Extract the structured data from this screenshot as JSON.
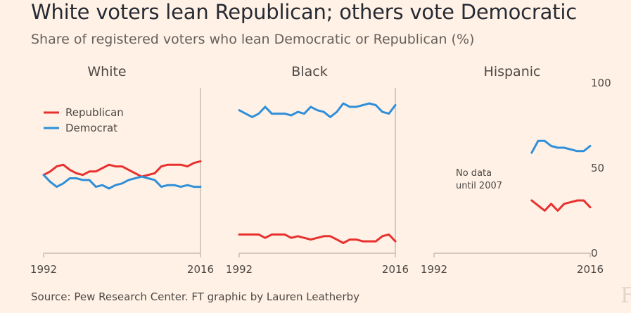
{
  "chart_data": {
    "type": "line",
    "title": "White voters lean Republican; others vote Democratic",
    "subtitle": "Share of registered voters who lean Democratic or Republican (%)",
    "source": "Source: Pew Research Center. FT graphic by Lauren Leatherby",
    "watermark": "FT",
    "ylim": [
      0,
      100
    ],
    "y_ticks": [
      "0",
      "50",
      "100"
    ],
    "xlim": [
      1992,
      2016
    ],
    "x_ticks": [
      "1992",
      "2016"
    ],
    "colors": {
      "republican": "#e8302f",
      "democrat": "#2f8fd8",
      "axis": "#c9bdb1"
    },
    "legend": [
      "Republican",
      "Democrat"
    ],
    "annotation": [
      "No data",
      "until 2007"
    ],
    "panels": [
      {
        "title": "White",
        "series": [
          {
            "name": "Republican",
            "x": [
              1992,
              1993,
              1994,
              1995,
              1996,
              1997,
              1998,
              1999,
              2000,
              2001,
              2002,
              2003,
              2004,
              2005,
              2006,
              2007,
              2008,
              2009,
              2010,
              2011,
              2012,
              2013,
              2014,
              2015,
              2016
            ],
            "values": [
              46,
              48,
              51,
              52,
              49,
              47,
              46,
              48,
              48,
              50,
              52,
              51,
              51,
              49,
              47,
              45,
              46,
              47,
              51,
              52,
              52,
              52,
              51,
              53,
              54
            ]
          },
          {
            "name": "Democrat",
            "x": [
              1992,
              1993,
              1994,
              1995,
              1996,
              1997,
              1998,
              1999,
              2000,
              2001,
              2002,
              2003,
              2004,
              2005,
              2006,
              2007,
              2008,
              2009,
              2010,
              2011,
              2012,
              2013,
              2014,
              2015,
              2016
            ],
            "values": [
              46,
              42,
              39,
              41,
              44,
              44,
              43,
              43,
              39,
              40,
              38,
              40,
              41,
              43,
              44,
              45,
              44,
              43,
              39,
              40,
              40,
              39,
              40,
              39,
              39
            ]
          }
        ]
      },
      {
        "title": "Black",
        "series": [
          {
            "name": "Republican",
            "x": [
              1992,
              1993,
              1994,
              1995,
              1996,
              1997,
              1998,
              1999,
              2000,
              2001,
              2002,
              2003,
              2004,
              2005,
              2006,
              2007,
              2008,
              2009,
              2010,
              2011,
              2012,
              2013,
              2014,
              2015,
              2016
            ],
            "values": [
              11,
              11,
              11,
              11,
              9,
              11,
              11,
              11,
              9,
              10,
              9,
              8,
              9,
              10,
              10,
              8,
              6,
              8,
              8,
              7,
              7,
              7,
              10,
              11,
              7
            ]
          },
          {
            "name": "Democrat",
            "x": [
              1992,
              1993,
              1994,
              1995,
              1996,
              1997,
              1998,
              1999,
              2000,
              2001,
              2002,
              2003,
              2004,
              2005,
              2006,
              2007,
              2008,
              2009,
              2010,
              2011,
              2012,
              2013,
              2014,
              2015,
              2016
            ],
            "values": [
              84,
              82,
              80,
              82,
              86,
              82,
              82,
              82,
              81,
              83,
              82,
              86,
              84,
              83,
              80,
              83,
              88,
              86,
              86,
              87,
              88,
              87,
              83,
              82,
              87
            ]
          }
        ]
      },
      {
        "title": "Hispanic",
        "series": [
          {
            "name": "Republican",
            "x": [
              2007,
              2008,
              2009,
              2010,
              2011,
              2012,
              2013,
              2014,
              2015,
              2016
            ],
            "values": [
              31,
              28,
              25,
              29,
              25,
              29,
              30,
              31,
              31,
              27
            ]
          },
          {
            "name": "Democrat",
            "x": [
              2007,
              2008,
              2009,
              2010,
              2011,
              2012,
              2013,
              2014,
              2015,
              2016
            ],
            "values": [
              59,
              66,
              66,
              63,
              62,
              62,
              61,
              60,
              60,
              63
            ]
          }
        ]
      }
    ]
  }
}
